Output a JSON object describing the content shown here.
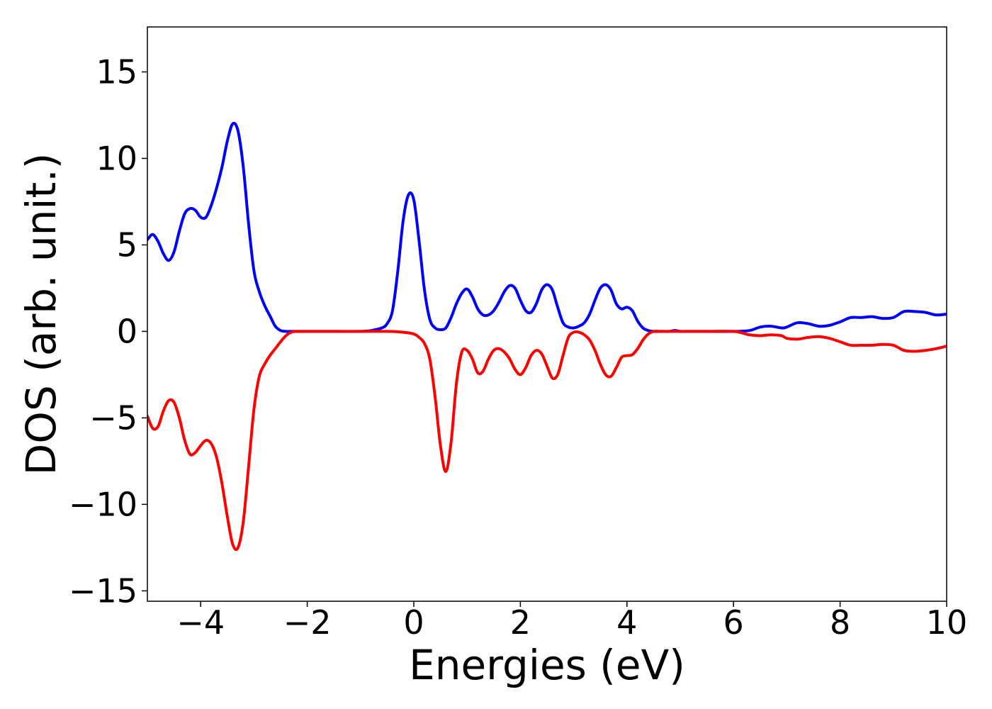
{
  "chart_data": {
    "type": "line",
    "title": "",
    "xlabel": "Energies (eV)",
    "ylabel": "DOS (arb. unit.)",
    "xlim": [
      -5,
      10
    ],
    "ylim": [
      -15.6,
      17.6
    ],
    "xticks": [
      -4,
      -2,
      0,
      2,
      4,
      6,
      8,
      10
    ],
    "xtick_labels": [
      "−4",
      "−2",
      "0",
      "2",
      "4",
      "6",
      "8",
      "10"
    ],
    "yticks": [
      15,
      10,
      5,
      0,
      -5,
      -10,
      -15
    ],
    "ytick_labels": [
      "15",
      "10",
      "5",
      "0",
      "−5",
      "−10",
      "−15"
    ],
    "grid": false,
    "legend": "none",
    "series": [
      {
        "color": "#0000ff",
        "x": [
          -5.0,
          -4.9,
          -4.8,
          -4.7,
          -4.6,
          -4.5,
          -4.4,
          -4.3,
          -4.2,
          -4.1,
          -4.0,
          -3.9,
          -3.8,
          -3.7,
          -3.6,
          -3.5,
          -3.4,
          -3.3,
          -3.2,
          -3.1,
          -3.0,
          -2.9,
          -2.8,
          -2.7,
          -2.6,
          -2.5,
          -2.4,
          -2.3,
          -2.2,
          -2.1,
          -2.0,
          -1.5,
          -1.0,
          -0.8,
          -0.6,
          -0.5,
          -0.4,
          -0.3,
          -0.2,
          -0.1,
          0.0,
          0.1,
          0.2,
          0.3,
          0.4,
          0.5,
          0.6,
          0.7,
          0.8,
          0.9,
          1.0,
          1.1,
          1.2,
          1.3,
          1.4,
          1.5,
          1.6,
          1.7,
          1.8,
          1.9,
          2.0,
          2.1,
          2.2,
          2.3,
          2.4,
          2.5,
          2.6,
          2.7,
          2.8,
          2.9,
          3.0,
          3.1,
          3.2,
          3.3,
          3.4,
          3.5,
          3.6,
          3.7,
          3.8,
          3.9,
          4.0,
          4.1,
          4.2,
          4.3,
          4.4,
          4.5,
          4.6,
          4.7,
          4.8,
          4.9,
          5.0,
          5.1,
          5.2,
          5.5,
          6.0,
          6.3,
          6.5,
          6.7,
          6.9,
          7.0,
          7.2,
          7.4,
          7.6,
          7.8,
          8.0,
          8.2,
          8.4,
          8.6,
          8.8,
          9.0,
          9.2,
          9.4,
          9.6,
          9.8,
          10.0
        ],
        "y": [
          5.3,
          5.6,
          5.2,
          4.5,
          4.1,
          4.6,
          5.8,
          6.8,
          7.1,
          7.0,
          6.6,
          6.6,
          7.3,
          8.3,
          9.5,
          11.0,
          12.0,
          11.6,
          9.5,
          6.2,
          3.5,
          2.3,
          1.5,
          0.9,
          0.3,
          0.05,
          0.0,
          0.0,
          0.0,
          0.0,
          0.0,
          0.0,
          0.0,
          0.05,
          0.2,
          0.45,
          1.2,
          3.5,
          6.4,
          7.9,
          7.6,
          5.2,
          2.4,
          0.7,
          0.2,
          0.1,
          0.2,
          0.8,
          1.6,
          2.2,
          2.45,
          2.0,
          1.3,
          0.95,
          0.95,
          1.2,
          1.7,
          2.3,
          2.65,
          2.5,
          1.8,
          1.2,
          1.1,
          1.6,
          2.4,
          2.7,
          2.4,
          1.4,
          0.5,
          0.25,
          0.2,
          0.3,
          0.5,
          1.0,
          1.8,
          2.5,
          2.7,
          2.4,
          1.6,
          1.3,
          1.4,
          1.2,
          0.6,
          0.2,
          0.05,
          0.0,
          0.0,
          0.0,
          0.0,
          0.05,
          0.0,
          0.0,
          0.0,
          0.0,
          0.0,
          0.05,
          0.25,
          0.3,
          0.2,
          0.25,
          0.5,
          0.45,
          0.3,
          0.35,
          0.55,
          0.8,
          0.8,
          0.85,
          0.75,
          0.8,
          1.15,
          1.15,
          1.1,
          0.95,
          1.0
        ]
      },
      {
        "color": "#ff0000",
        "x": [
          -5.0,
          -4.9,
          -4.8,
          -4.7,
          -4.6,
          -4.5,
          -4.4,
          -4.3,
          -4.2,
          -4.1,
          -4.0,
          -3.9,
          -3.8,
          -3.7,
          -3.6,
          -3.5,
          -3.4,
          -3.3,
          -3.2,
          -3.1,
          -3.0,
          -2.9,
          -2.8,
          -2.7,
          -2.6,
          -2.5,
          -2.4,
          -2.3,
          -2.2,
          -2.1,
          -2.0,
          -1.5,
          -1.0,
          -0.5,
          -0.2,
          0.0,
          0.1,
          0.2,
          0.3,
          0.4,
          0.5,
          0.6,
          0.7,
          0.8,
          0.9,
          1.0,
          1.1,
          1.2,
          1.3,
          1.4,
          1.5,
          1.6,
          1.7,
          1.8,
          1.9,
          2.0,
          2.1,
          2.2,
          2.3,
          2.4,
          2.5,
          2.6,
          2.7,
          2.8,
          2.9,
          3.0,
          3.1,
          3.2,
          3.3,
          3.4,
          3.5,
          3.6,
          3.7,
          3.8,
          3.9,
          4.0,
          4.1,
          4.2,
          4.3,
          4.4,
          4.5,
          4.6,
          4.7,
          4.8,
          4.9,
          5.0,
          5.1,
          5.2,
          5.3,
          5.5,
          6.0,
          6.3,
          6.5,
          6.7,
          6.9,
          7.0,
          7.2,
          7.4,
          7.6,
          7.8,
          8.0,
          8.2,
          8.4,
          8.6,
          8.8,
          9.0,
          9.2,
          9.4,
          9.6,
          9.8,
          10.0
        ],
        "y": [
          -4.9,
          -5.6,
          -5.5,
          -4.6,
          -4.0,
          -4.1,
          -5.0,
          -6.3,
          -7.1,
          -7.0,
          -6.6,
          -6.3,
          -6.5,
          -7.3,
          -8.8,
          -10.7,
          -12.3,
          -12.5,
          -11.0,
          -7.8,
          -4.5,
          -2.6,
          -1.9,
          -1.4,
          -1.0,
          -0.6,
          -0.25,
          -0.05,
          0.0,
          0.0,
          0.0,
          0.0,
          0.0,
          0.0,
          -0.05,
          -0.15,
          -0.35,
          -0.7,
          -1.6,
          -3.8,
          -6.6,
          -8.1,
          -6.4,
          -3.0,
          -1.2,
          -1.1,
          -1.6,
          -2.4,
          -2.3,
          -1.6,
          -1.1,
          -1.0,
          -1.2,
          -1.6,
          -2.2,
          -2.5,
          -2.1,
          -1.4,
          -1.1,
          -1.3,
          -2.0,
          -2.7,
          -2.5,
          -1.4,
          -0.35,
          -0.05,
          -0.05,
          -0.2,
          -0.5,
          -1.1,
          -1.9,
          -2.5,
          -2.6,
          -2.1,
          -1.5,
          -1.4,
          -1.35,
          -1.0,
          -0.5,
          -0.15,
          0.0,
          0.0,
          0.0,
          0.0,
          0.0,
          0.0,
          0.0,
          0.0,
          0.0,
          0.0,
          0.0,
          -0.2,
          -0.25,
          -0.2,
          -0.25,
          -0.4,
          -0.45,
          -0.35,
          -0.3,
          -0.4,
          -0.6,
          -0.8,
          -0.8,
          -0.8,
          -0.75,
          -0.8,
          -1.1,
          -1.15,
          -1.1,
          -1.0,
          -0.85
        ]
      }
    ]
  }
}
